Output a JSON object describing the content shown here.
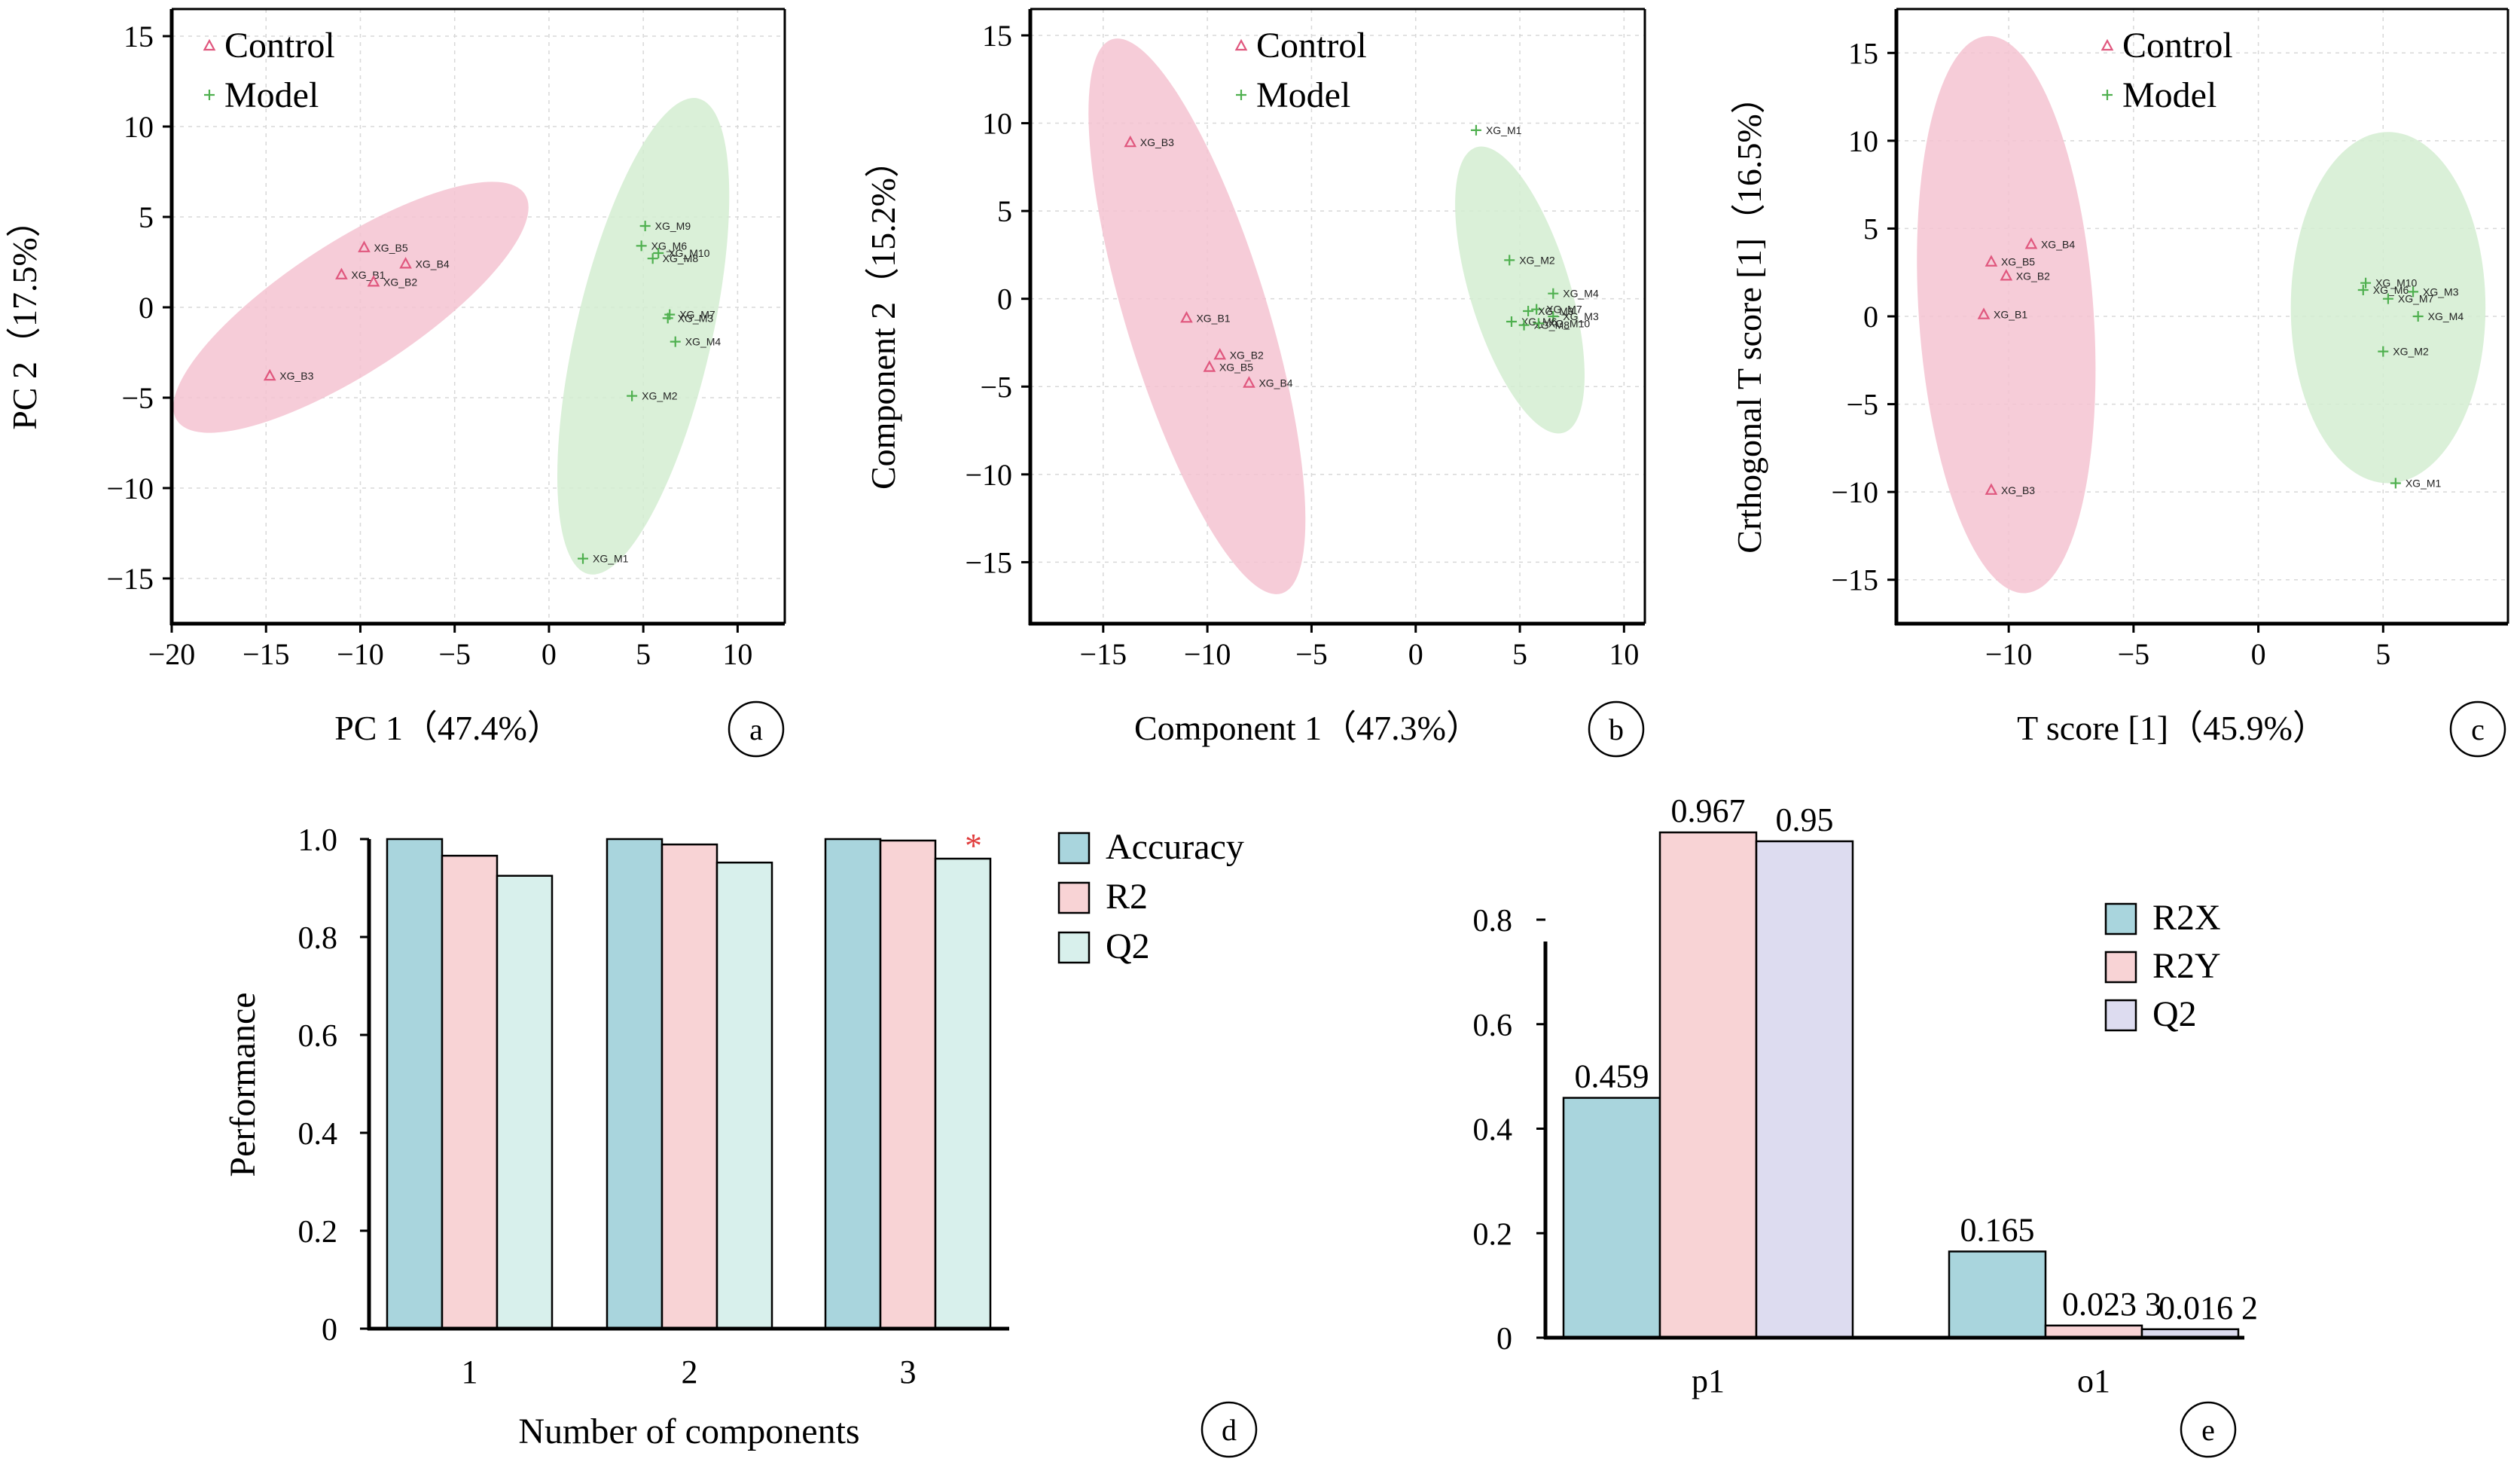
{
  "colors": {
    "control": "#e0577e",
    "model": "#4fb04f",
    "control_ellipse": "#f5c3d1",
    "model_ellipse": "#d3edd1",
    "accuracy": "#a9d5dd",
    "r2": "#f8d3d5",
    "q2_d": "#d8f0ec",
    "q2_e": "#dddcf0",
    "star": "#e03b3b",
    "axis": "#000000",
    "grid": "#d8d8d8"
  },
  "chart_data": [
    {
      "id": "a",
      "type": "scatter",
      "panel_label": "a",
      "xlabel": "PC 1（47.4%）",
      "ylabel": "PC 2（17.5%）",
      "xlim": [
        -20,
        12.5
      ],
      "ylim": [
        -17.5,
        16.5
      ],
      "xticks": [
        -20,
        -15,
        -10,
        -5,
        0,
        5,
        10
      ],
      "yticks": [
        -15,
        -10,
        -5,
        0,
        5,
        10,
        15
      ],
      "xtick_labels": [
        "−20",
        "−15",
        "−10",
        "−5",
        "0",
        "5",
        "10"
      ],
      "ytick_labels": [
        "−15",
        "−10",
        "−5",
        "0",
        "5",
        "10",
        "15"
      ],
      "grid": true,
      "legend_position": "top-left",
      "legend": [
        "Control",
        "Model"
      ],
      "ellipses": [
        {
          "group": "control",
          "cx": -10.5,
          "cy": 0,
          "rx": 11,
          "ry": 3.6,
          "angle_deg": 33
        },
        {
          "group": "model",
          "cx": 5,
          "cy": -1.6,
          "rx": 3.6,
          "ry": 13.5,
          "angle_deg": -13
        }
      ],
      "series": [
        {
          "name": "Control",
          "marker": "triangle",
          "points": [
            {
              "label": "XG_B5",
              "x": -9.8,
              "y": 3.3
            },
            {
              "label": "XG_B4",
              "x": -7.6,
              "y": 2.4
            },
            {
              "label": "XG_B1",
              "x": -11.0,
              "y": 1.8
            },
            {
              "label": "XG_B2",
              "x": -9.3,
              "y": 1.4
            },
            {
              "label": "XG_B3",
              "x": -14.8,
              "y": -3.8
            }
          ]
        },
        {
          "name": "Model",
          "marker": "plus",
          "points": [
            {
              "label": "XG_M9",
              "x": 5.1,
              "y": 4.5
            },
            {
              "label": "XG_M6",
              "x": 4.9,
              "y": 3.4
            },
            {
              "label": "XG_M10",
              "x": 5.8,
              "y": 3.0
            },
            {
              "label": "XG_M8",
              "x": 5.5,
              "y": 2.7
            },
            {
              "label": "XG_M7",
              "x": 6.4,
              "y": -0.4
            },
            {
              "label": "XG_M3",
              "x": 6.3,
              "y": -0.6
            },
            {
              "label": "XG_M4",
              "x": 6.7,
              "y": -1.9
            },
            {
              "label": "XG_M2",
              "x": 4.4,
              "y": -4.9
            },
            {
              "label": "XG_M1",
              "x": 1.8,
              "y": -13.9
            }
          ]
        }
      ]
    },
    {
      "id": "b",
      "type": "scatter",
      "panel_label": "b",
      "xlabel": "Component 1（47.3%）",
      "ylabel": "Component 2（15.2%）",
      "xlim": [
        -18.5,
        11
      ],
      "ylim": [
        -18.5,
        16.5
      ],
      "xticks": [
        -15,
        -10,
        -5,
        0,
        5,
        10
      ],
      "yticks": [
        -15,
        -10,
        -5,
        0,
        5,
        10,
        15
      ],
      "xtick_labels": [
        "−15",
        "−10",
        "−5",
        "0",
        "5",
        "10"
      ],
      "ytick_labels": [
        "−15",
        "−10",
        "−5",
        "0",
        "5",
        "10",
        "15"
      ],
      "grid": true,
      "legend_position": "top-center",
      "legend": [
        "Control",
        "Model"
      ],
      "ellipses": [
        {
          "group": "control",
          "cx": -10.5,
          "cy": -1,
          "rx": 3.4,
          "ry": 16.5,
          "angle_deg": 17
        },
        {
          "group": "model",
          "cx": 5.0,
          "cy": 0.5,
          "rx": 2.4,
          "ry": 8.5,
          "angle_deg": 17
        }
      ],
      "series": [
        {
          "name": "Control",
          "marker": "triangle",
          "points": [
            {
              "label": "XG_B3",
              "x": -13.7,
              "y": 8.9
            },
            {
              "label": "XG_B1",
              "x": -11.0,
              "y": -1.1
            },
            {
              "label": "XG_B2",
              "x": -9.4,
              "y": -3.2
            },
            {
              "label": "XG_B5",
              "x": -9.9,
              "y": -3.9
            },
            {
              "label": "XG_B4",
              "x": -8.0,
              "y": -4.8
            }
          ]
        },
        {
          "name": "Model",
          "marker": "plus",
          "points": [
            {
              "label": "XG_M1",
              "x": 2.9,
              "y": 9.6
            },
            {
              "label": "XG_M2",
              "x": 4.5,
              "y": 2.2
            },
            {
              "label": "XG_M4",
              "x": 6.6,
              "y": 0.3
            },
            {
              "label": "XG_M7",
              "x": 5.8,
              "y": -0.6
            },
            {
              "label": "XG_M9",
              "x": 5.4,
              "y": -0.7
            },
            {
              "label": "XG_M3",
              "x": 6.6,
              "y": -1.0
            },
            {
              "label": "XG_M6",
              "x": 4.6,
              "y": -1.3
            },
            {
              "label": "XG_M8",
              "x": 5.2,
              "y": -1.5
            },
            {
              "label": "XG_M10",
              "x": 5.9,
              "y": -1.4
            }
          ]
        }
      ]
    },
    {
      "id": "c",
      "type": "scatter",
      "panel_label": "c",
      "xlabel": "T score [1]（45.9%）",
      "ylabel": "Crthogonal T score [1]（16.5%）",
      "xlim": [
        -14.5,
        10
      ],
      "ylim": [
        -17.5,
        17.5
      ],
      "xticks": [
        -10,
        -5,
        0,
        5
      ],
      "yticks": [
        -15,
        -10,
        -5,
        0,
        5,
        10,
        15
      ],
      "xtick_labels": [
        "−10",
        "−5",
        "0",
        "5"
      ],
      "ytick_labels": [
        "−15",
        "−10",
        "−5",
        "0",
        "5",
        "10",
        "15"
      ],
      "grid": true,
      "legend_position": "top-center",
      "legend": [
        "Control",
        "Model"
      ],
      "ellipses": [
        {
          "group": "control",
          "cx": -10.1,
          "cy": 0.1,
          "rx": 3.5,
          "ry": 15.9,
          "angle_deg": 4
        },
        {
          "group": "model",
          "cx": 5.2,
          "cy": 0.5,
          "rx": 3.9,
          "ry": 10.0,
          "angle_deg": 0
        }
      ],
      "series": [
        {
          "name": "Control",
          "marker": "triangle",
          "points": [
            {
              "label": "XG_B4",
              "x": -9.1,
              "y": 4.1
            },
            {
              "label": "XG_B5",
              "x": -10.7,
              "y": 3.1
            },
            {
              "label": "XG_B2",
              "x": -10.1,
              "y": 2.3
            },
            {
              "label": "XG_B1",
              "x": -11.0,
              "y": 0.1
            },
            {
              "label": "XG_B3",
              "x": -10.7,
              "y": -9.9
            }
          ]
        },
        {
          "name": "Model",
          "marker": "plus",
          "points": [
            {
              "label": "XG_M10",
              "x": 4.3,
              "y": 1.9
            },
            {
              "label": "XG_M6",
              "x": 4.2,
              "y": 1.5
            },
            {
              "label": "XG_M3",
              "x": 6.2,
              "y": 1.4
            },
            {
              "label": "XG_M7",
              "x": 5.2,
              "y": 1.0
            },
            {
              "label": "XG_M4",
              "x": 6.4,
              "y": 0.0
            },
            {
              "label": "XG_M2",
              "x": 5.0,
              "y": -2.0
            },
            {
              "label": "XG_M1",
              "x": 5.5,
              "y": -9.5
            }
          ]
        }
      ]
    },
    {
      "id": "d",
      "type": "bar",
      "panel_label": "d",
      "xlabel": "Number of components",
      "ylabel": "Performance",
      "categories": [
        "1",
        "2",
        "3"
      ],
      "ylim": [
        0,
        1.0
      ],
      "yticks": [
        0,
        0.2,
        0.4,
        0.6,
        0.8,
        1.0
      ],
      "ytick_labels": [
        "0",
        "0.2",
        "0.4",
        "0.6",
        "0.8",
        "1.0"
      ],
      "legend_position": "right",
      "annotation": {
        "text": "*",
        "series": "Q2",
        "category": "3"
      },
      "series": [
        {
          "name": "Accuracy",
          "values": [
            1.0,
            1.0,
            1.0
          ]
        },
        {
          "name": "R2",
          "values": [
            0.966,
            0.989,
            0.997
          ]
        },
        {
          "name": "Q2",
          "values": [
            0.925,
            0.952,
            0.96
          ]
        }
      ]
    },
    {
      "id": "e",
      "type": "bar",
      "panel_label": "e",
      "categories": [
        "p1",
        "o1"
      ],
      "ylim": [
        0,
        0.96
      ],
      "yticks": [
        0,
        0.2,
        0.4,
        0.6,
        0.8
      ],
      "ytick_labels": [
        "0",
        "0.2",
        "0.4",
        "0.6",
        "0.8"
      ],
      "legend_position": "right",
      "series": [
        {
          "name": "R2X",
          "values": [
            0.459,
            0.165
          ],
          "labels": [
            "0.459",
            "0.165"
          ]
        },
        {
          "name": "R2Y",
          "values": [
            0.967,
            0.0233
          ],
          "labels": [
            "0.967",
            "0.023 3"
          ]
        },
        {
          "name": "Q2",
          "values": [
            0.95,
            0.0162
          ],
          "labels": [
            "0.95",
            "0.016 2"
          ]
        }
      ]
    }
  ]
}
